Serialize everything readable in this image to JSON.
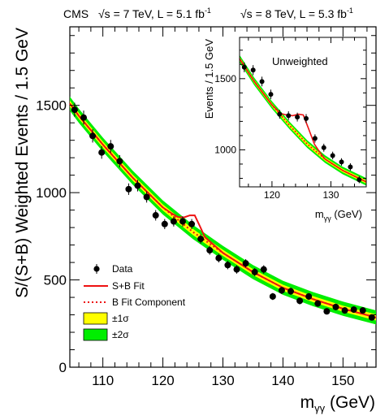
{
  "header": {
    "experiment": "CMS",
    "run1": {
      "energy": "√s = 7 TeV, L = 5.1 fb",
      "lumi_sup": "-1"
    },
    "run2": {
      "energy": "√s = 8 TeV, L = 5.3 fb",
      "lumi_sup": "-1"
    }
  },
  "chart_data": [
    {
      "type": "scatter",
      "panel": "main",
      "xlabel": "m",
      "xlabel_sub": "γγ",
      "xlabel_unit": " (GeV)",
      "ylabel": "S/(S+B) Weighted Events / 1.5 GeV",
      "xlim": [
        104.5,
        155.5
      ],
      "ylim": [
        0,
        1950
      ],
      "xticks": [
        110,
        120,
        130,
        140,
        150
      ],
      "yticks": [
        0,
        500,
        1000,
        1500
      ],
      "legend_placement": "bottom-left",
      "legend": [
        {
          "label": "Data",
          "symbol": "marker",
          "color": "#000000"
        },
        {
          "label": "S+B Fit",
          "symbol": "line",
          "color": "#ee1111"
        },
        {
          "label": "B Fit Component",
          "symbol": "dotted",
          "color": "#ee1111"
        },
        {
          "label": "±1σ",
          "symbol": "box",
          "color": "#ffff00"
        },
        {
          "label": "±2σ",
          "symbol": "box",
          "color": "#00ee00"
        }
      ],
      "band_1sigma_halfwidth": 12,
      "band_2sigma_halfwidth": 28,
      "background_fit": {
        "x": [
          104.5,
          106,
          110,
          115,
          120,
          125,
          130,
          135,
          140,
          145,
          150,
          155.5
        ],
        "y": [
          1510,
          1440,
          1275,
          1085,
          915,
          775,
          655,
          545,
          455,
          390,
          335,
          285
        ]
      },
      "signal_plus_background_fit": {
        "x": [
          104.5,
          106,
          110,
          115,
          120,
          121.5,
          122.5,
          123.5,
          124.5,
          125.3,
          126.2,
          127,
          128,
          130,
          135,
          140,
          145,
          150,
          155.5
        ],
        "y": [
          1510,
          1440,
          1275,
          1085,
          915,
          880,
          860,
          858,
          870,
          870,
          805,
          745,
          715,
          655,
          545,
          455,
          390,
          335,
          285
        ]
      },
      "data": {
        "x": [
          105.3,
          106.8,
          108.3,
          109.8,
          111.3,
          112.8,
          114.3,
          115.8,
          117.3,
          118.8,
          120.3,
          121.8,
          123.3,
          124.8,
          126.3,
          127.8,
          129.3,
          130.8,
          132.3,
          133.8,
          135.3,
          136.8,
          138.3,
          139.8,
          141.3,
          142.8,
          144.3,
          145.8,
          147.3,
          148.8,
          150.3,
          151.8,
          153.3,
          154.8
        ],
        "y": [
          1475,
          1430,
          1325,
          1230,
          1265,
          1180,
          1020,
          1040,
          975,
          870,
          820,
          835,
          835,
          820,
          735,
          670,
          625,
          585,
          560,
          595,
          545,
          560,
          405,
          440,
          435,
          380,
          405,
          365,
          320,
          345,
          325,
          330,
          325,
          285
        ],
        "err": [
          40,
          40,
          38,
          36,
          37,
          35,
          33,
          33,
          32,
          30,
          29,
          29,
          29,
          29,
          27,
          26,
          25,
          24,
          24,
          24,
          23,
          24,
          20,
          21,
          21,
          20,
          20,
          19,
          18,
          19,
          18,
          18,
          18,
          17
        ]
      }
    },
    {
      "type": "scatter",
      "panel": "inset",
      "title": "Unweighted",
      "xlabel": "m",
      "xlabel_sub": "γγ",
      "xlabel_unit": " (GeV)",
      "ylabel": "Events / 1.5 GeV",
      "xlim": [
        114.5,
        136
      ],
      "ylim": [
        740,
        1790
      ],
      "xticks": [
        120,
        130
      ],
      "yticks": [
        1000,
        1500
      ],
      "band_1sigma_halfwidth": 12,
      "band_2sigma_halfwidth": 26,
      "background_fit": {
        "x": [
          114.5,
          117,
          120,
          123,
          126,
          129,
          132,
          136
        ],
        "y": [
          1640,
          1480,
          1315,
          1170,
          1040,
          935,
          855,
          775
        ]
      },
      "signal_plus_background_fit": {
        "x": [
          114.5,
          117,
          120,
          121.5,
          122.5,
          123.5,
          124.5,
          125.3,
          126.2,
          127.2,
          128.5,
          129,
          132,
          136
        ],
        "y": [
          1640,
          1480,
          1315,
          1255,
          1245,
          1240,
          1250,
          1245,
          1150,
          1040,
          960,
          935,
          855,
          775
        ]
      },
      "data": {
        "x": [
          115.3,
          116.8,
          118.3,
          119.8,
          121.3,
          122.8,
          124.3,
          125.8,
          127.3,
          128.8,
          130.3,
          131.8,
          133.3,
          134.8
        ],
        "y": [
          1580,
          1560,
          1480,
          1390,
          1250,
          1240,
          1230,
          1220,
          1080,
          1015,
          960,
          915,
          880,
          790
        ],
        "err": [
          35,
          35,
          34,
          33,
          31,
          31,
          31,
          31,
          29,
          28,
          27,
          26,
          26,
          24
        ]
      }
    }
  ]
}
